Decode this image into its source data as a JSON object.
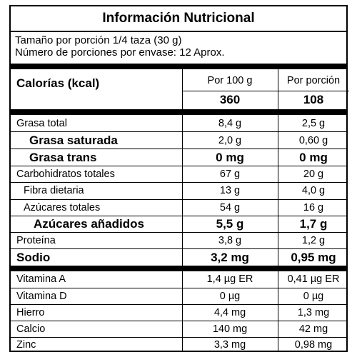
{
  "title": "Información Nutricional",
  "serving_size": "Tamaño por porción 1/4 taza (30 g)",
  "servings_per_container": "Número de porciones por envase: 12 Aprox.",
  "calories": {
    "label": "Calorías (kcal)",
    "col1_header": "Por 100 g",
    "col2_header": "Por porción",
    "col1_value": "360",
    "col2_value": "108"
  },
  "nutrients": [
    {
      "name": "Grasa total",
      "per100": "8,4 g",
      "perServing": "2,5 g"
    },
    {
      "name": "Grasa saturada",
      "per100": "2,0 g",
      "perServing": "0,60 g"
    },
    {
      "name": "Grasa trans",
      "per100": "0 mg",
      "perServing": "0 mg"
    },
    {
      "name": "Carbohidratos totales",
      "per100": "67 g",
      "perServing": "20 g"
    },
    {
      "name": "Fibra dietaria",
      "per100": "13 g",
      "perServing": "4,0 g"
    },
    {
      "name": "Azúcares totales",
      "per100": "54 g",
      "perServing": "16 g"
    },
    {
      "name": "Azúcares añadidos",
      "per100": "5,5 g",
      "perServing": "1,7 g"
    },
    {
      "name": "Proteína",
      "per100": "3,8 g",
      "perServing": "1,2 g"
    },
    {
      "name": "Sodio",
      "per100": "3,2 mg",
      "perServing": "0,95 mg"
    }
  ],
  "vitamins": [
    {
      "name": "Vitamina A",
      "per100": "1,4 µg ER",
      "perServing": "0,41 µg ER"
    },
    {
      "name": "Vitamina D",
      "per100": "0 µg",
      "perServing": "0 µg"
    },
    {
      "name": "Hierro",
      "per100": "4,4 mg",
      "perServing": "1,3 mg"
    },
    {
      "name": "Calcio",
      "per100": "140 mg",
      "perServing": "42 mg"
    },
    {
      "name": "Zinc",
      "per100": "3,3 mg",
      "perServing": "0,98 mg"
    }
  ]
}
